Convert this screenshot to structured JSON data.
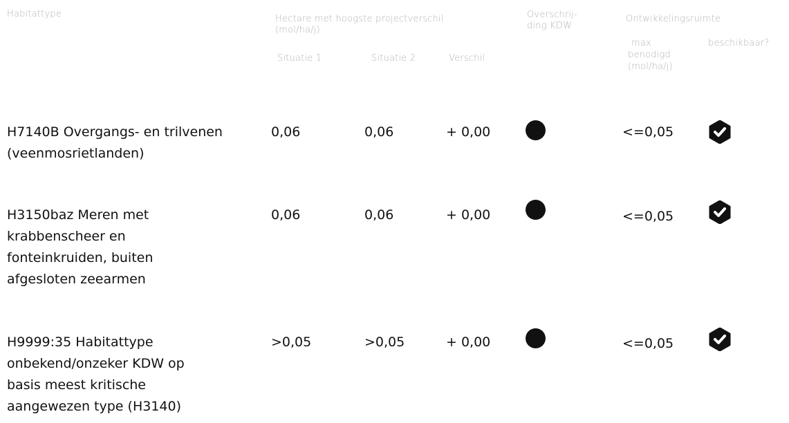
{
  "headers": {
    "habitattype": "Habitattype",
    "hectare_group": "Hectare met hoogste projectverschil",
    "hectare_unit": "(mol/ha/j)",
    "situatie1": "Situatie 1",
    "situatie2": "Situatie 2",
    "verschil": "Verschil",
    "overschrijding_line1": "Overschrij-",
    "overschrijding_line2": "ding KDW",
    "ontwikkelingsruimte": "Ontwikkelingsruimte",
    "max_line1": "max",
    "max_line2": "benodigd",
    "max_line3": "(mol/ha/j)",
    "beschikbaar": "beschikbaar?"
  },
  "rows": [
    {
      "habitat": "H7140B Overgangs- en trilvenen (veenmosrietlanden)",
      "situatie1": "0,06",
      "situatie2": "0,06",
      "verschil": "+ 0,00",
      "max_benodigd": "<=0,05"
    },
    {
      "habitat": "H3150baz Meren met krabbenscheer en fonteinkruiden, buiten afgesloten zeearmen",
      "situatie1": "0,06",
      "situatie2": "0,06",
      "verschil": "+ 0,00",
      "max_benodigd": "<=0,05"
    },
    {
      "habitat": "H9999:35 Habitattype onbekend/onzeker KDW op basis meest kritische aangewezen type (H3140)",
      "situatie1": ">0,05",
      "situatie2": ">0,05",
      "verschil": "+ 0,00",
      "max_benodigd": "<=0,05"
    }
  ],
  "icons": {
    "overschrijding": "filled-circle-icon",
    "beschikbaar": "hexagon-check-icon"
  },
  "colors": {
    "header_text": "#b4b4b4",
    "body_text": "#111111"
  }
}
